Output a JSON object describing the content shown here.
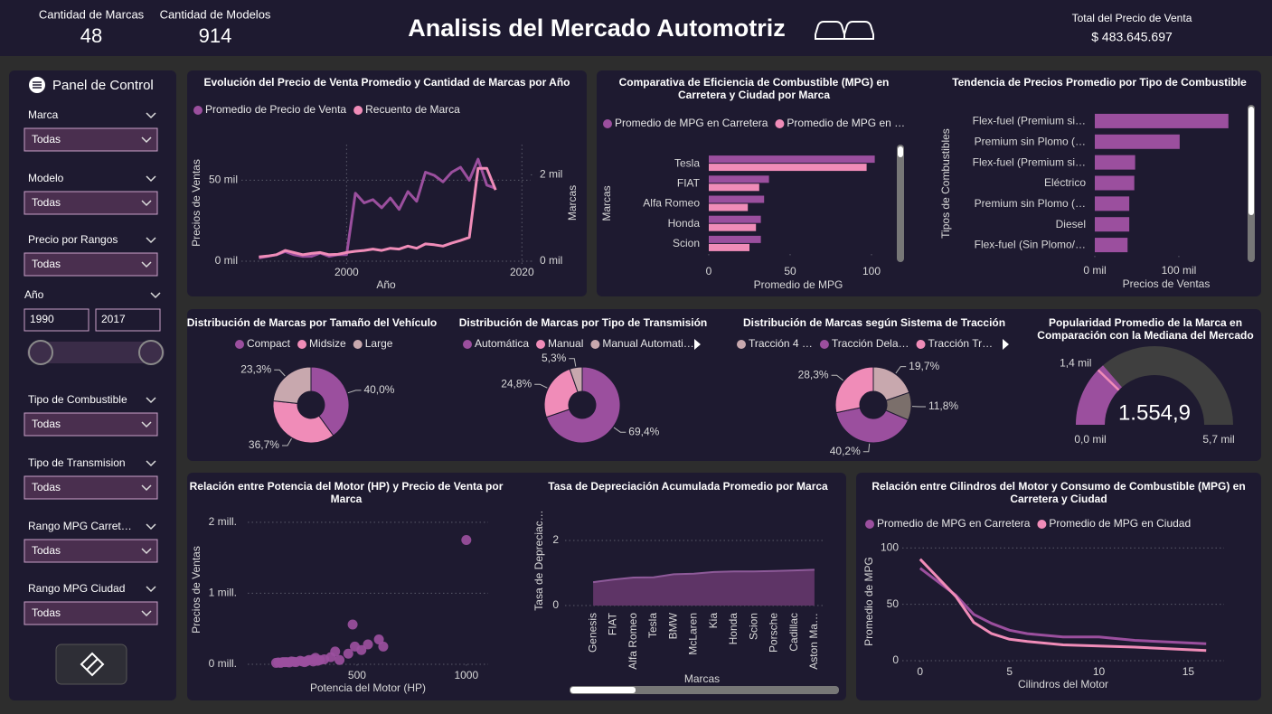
{
  "header": {
    "title": "Analisis del Mercado Automotriz",
    "kpis": [
      {
        "label": "Cantidad de Marcas",
        "value": 48
      },
      {
        "label": "Cantidad de Modelos",
        "value": 914
      },
      {
        "label": "Total del Precio de Venta",
        "value": "$ 483.645.697"
      }
    ]
  },
  "panel": {
    "title": "Panel de Control",
    "filters": [
      {
        "label": "Marca",
        "value": "Todas"
      },
      {
        "label": "Modelo",
        "value": "Todas"
      },
      {
        "label": "Precio por Rangos",
        "value": "Todas"
      },
      {
        "label": "Tipo de Combustible",
        "value": "Todas"
      },
      {
        "label": "Tipo de Transmision",
        "value": "Todas"
      },
      {
        "label": "Rango MPG Carret…",
        "value": "Todas"
      },
      {
        "label": "Rango MPG Ciudad",
        "value": "Todas"
      }
    ],
    "year": {
      "label": "Año",
      "from": 1990,
      "to": 2017
    }
  },
  "chart_data": [
    {
      "type": "line",
      "title": "Evolución del Precio de Venta Promedio y Cantidad de Marcas por Año",
      "x": [
        1990,
        1991,
        1992,
        1993,
        1994,
        1995,
        1996,
        1997,
        1998,
        1999,
        2000,
        2001,
        2002,
        2003,
        2004,
        2005,
        2006,
        2007,
        2008,
        2009,
        2010,
        2011,
        2012,
        2013,
        2014,
        2015,
        2016,
        2017
      ],
      "series": [
        {
          "name": "Promedio de Precio de Venta",
          "color": "#9b4f9e",
          "values": [
            2000,
            3000,
            4000,
            6000,
            4000,
            3000,
            3000,
            5000,
            3000,
            4000,
            4000,
            42000,
            36000,
            38000,
            33000,
            39000,
            32000,
            43000,
            37000,
            55000,
            53000,
            49000,
            55000,
            58000,
            50000,
            63000,
            47000,
            45000
          ]
        },
        {
          "name": "Recuento de Marca",
          "color": "#f08cb8",
          "axis": "y2",
          "values": [
            100,
            120,
            150,
            250,
            200,
            150,
            180,
            200,
            150,
            160,
            200,
            230,
            250,
            280,
            250,
            300,
            280,
            350,
            300,
            400,
            380,
            350,
            420,
            480,
            550,
            2150,
            2150,
            1650
          ]
        }
      ],
      "xlim": [
        1988,
        2021
      ],
      "xticks": [
        2000,
        2020
      ],
      "ylim": [
        0,
        72000
      ],
      "yticks": [
        {
          "value": 0,
          "label": "0 mil"
        },
        {
          "value": 50000,
          "label": "50 mil"
        }
      ],
      "y2lim": [
        0,
        2700
      ],
      "y2ticks": [
        {
          "value": 0,
          "label": "0 mil"
        },
        {
          "value": 2000,
          "label": "2 mil"
        }
      ],
      "xlabel": "Año",
      "ylabel": "Precios de Ventas",
      "y2label": "Marcas",
      "grid": true,
      "xgrid": true
    },
    {
      "type": "hbar",
      "title": "Comparativa de Eficiencia de Combustible (MPG) en Carretera y Ciudad por Marca",
      "categories": [
        "Tesla",
        "FIAT",
        "Alfa Romeo",
        "Honda",
        "Scion"
      ],
      "series": [
        {
          "name": "Promedio de MPG en Carretera",
          "color": "#9b4f9e",
          "values": [
            102,
            37,
            34,
            32,
            32
          ]
        },
        {
          "name": "Promedio de MPG en …",
          "color": "#f08cb8",
          "values": [
            97,
            31,
            24,
            29,
            25
          ]
        }
      ],
      "xlim": [
        0,
        110
      ],
      "xticks": [
        0,
        50,
        100
      ],
      "xlabel": "Promedio de MPG",
      "ylabel": "Marcas"
    },
    {
      "type": "hbar",
      "title": "Tendencia de Precios Promedio por Tipo de Combustible",
      "categories": [
        "Flex-fuel (Premium si…",
        "Premium sin Plomo (…",
        "Flex-fuel (Premium si…",
        "Eléctrico",
        "Premium sin Plomo (…",
        "Diesel",
        "Flex-fuel (Sin Plomo/…"
      ],
      "values": [
        159000,
        101000,
        48000,
        47000,
        41000,
        41000,
        39000
      ],
      "color": "#9b4f9e",
      "xlim": [
        0,
        170000
      ],
      "xticks": [
        {
          "value": 0,
          "label": "0 mil"
        },
        {
          "value": 100000,
          "label": "100 mil"
        }
      ],
      "xlabel": "Precios de Ventas",
      "ylabel": "Tipos de Combustibles"
    },
    {
      "type": "pie",
      "title": "Distribución de Marcas por Tamaño del Vehículo",
      "categories": [
        "Compact",
        "Midsize",
        "Large"
      ],
      "values": [
        40.0,
        36.7,
        23.3
      ],
      "value_labels": [
        "40,0%",
        "36,7%",
        "23,3%"
      ],
      "colors": [
        "#9b4f9e",
        "#f08cb8",
        "#c8a8ae"
      ]
    },
    {
      "type": "pie",
      "title": "Distribución de Marcas por Tipo de Transmisión",
      "categories": [
        "Automática",
        "Manual",
        "Manual Automati…"
      ],
      "values": [
        69.4,
        24.8,
        5.3
      ],
      "value_labels": [
        "69,4%",
        "24,8%",
        "5,3%"
      ],
      "colors": [
        "#9b4f9e",
        "#f08cb8",
        "#c8a8ae"
      ]
    },
    {
      "type": "pie",
      "title": "Distribución de Marcas según Sistema de Tracción",
      "categories": [
        "Tracción 4 …",
        null,
        "Tracción Dela…",
        "Tracción Tr…"
      ],
      "values": [
        19.7,
        11.8,
        40.2,
        28.3
      ],
      "value_labels": [
        "19,7%",
        "11,8%",
        "40,2%",
        "28,3%"
      ],
      "colors": [
        "#c8a8ae",
        "#7b6f6b",
        "#9b4f9e",
        "#f08cb8"
      ]
    },
    {
      "type": "gauge",
      "title": "Popularidad Promedio de la Marca en Comparación con la Mediana del Mercado",
      "value": 1554.9,
      "value_label": "1.554,9",
      "min": 0,
      "min_label": "0,0 mil",
      "max": 5700,
      "max_label": "5,7 mil",
      "target": 1400,
      "target_label": "1,4 mil",
      "color": "#9b4f9e",
      "track_color": "#3f3f3f",
      "target_color": "#f08cb8"
    },
    {
      "type": "scatter",
      "title": "Relación entre Potencia del Motor (HP) y Precio de Venta por Marca",
      "color": "#9b4f9e",
      "x": [
        1000,
        480,
        600,
        620,
        550,
        520,
        490,
        460,
        400,
        380,
        420,
        350,
        300,
        320,
        280,
        250,
        240,
        220,
        200,
        180,
        160,
        150,
        140,
        130,
        300,
        260,
        210,
        190,
        170,
        310,
        330,
        270
      ],
      "values": [
        1750000,
        560000,
        350000,
        250000,
        280000,
        200000,
        250000,
        150000,
        180000,
        100000,
        60000,
        70000,
        70000,
        50000,
        60000,
        40000,
        50000,
        30000,
        40000,
        30000,
        30000,
        20000,
        25000,
        20000,
        40000,
        30000,
        35000,
        25000,
        30000,
        90000,
        60000,
        45000
      ],
      "xlim": [
        0,
        1100
      ],
      "xticks": [
        500,
        1000
      ],
      "ylim": [
        0,
        2100000
      ],
      "yticks": [
        {
          "value": 0,
          "label": "0 mill."
        },
        {
          "value": 1000000,
          "label": "1 mill."
        },
        {
          "value": 2000000,
          "label": "2 mill."
        }
      ],
      "xlabel": "Potencia del Motor (HP)",
      "ylabel": "Precios de Ventas",
      "grid": true
    },
    {
      "type": "area",
      "title": "Tasa de Depreciación Acumulada Promedio por Marca",
      "color": "#5e3466",
      "categories": [
        "Genesis",
        "FIAT",
        "Alfa Romeo",
        "Tesla",
        "BMW",
        "McLaren",
        "Kia",
        "Honda",
        "Scion",
        "Porsche",
        "Cadillac",
        "Aston Ma…"
      ],
      "values": [
        0.72,
        0.8,
        0.86,
        0.87,
        0.96,
        0.98,
        1.03,
        1.05,
        1.05,
        1.06,
        1.08,
        1.1
      ],
      "ylim": [
        0,
        2.5
      ],
      "yticks": [
        0,
        2
      ],
      "xlabel": "Marcas",
      "ylabel": "Tasa de Depreciac…",
      "grid": true
    },
    {
      "type": "line",
      "title": "Relación entre Cilindros del Motor y Consumo de Combustible (MPG) en Carretera y Ciudad",
      "x": [
        0,
        2,
        3,
        4,
        5,
        6,
        8,
        10,
        12,
        16
      ],
      "series": [
        {
          "name": "Promedio de MPG en Carretera",
          "color": "#9b4f9e",
          "values": [
            82,
            58,
            41,
            33,
            27,
            24,
            21,
            21,
            18,
            15
          ]
        },
        {
          "name": "Promedio de MPG en Ciudad",
          "color": "#f08cb8",
          "values": [
            90,
            57,
            34,
            24,
            19,
            17,
            14,
            13,
            12,
            9
          ]
        }
      ],
      "xlim": [
        -1,
        17
      ],
      "xticks": [
        0,
        5,
        10,
        15
      ],
      "ylim": [
        0,
        105
      ],
      "yticks": [
        0,
        50,
        100
      ],
      "xlabel": "Cilindros del Motor",
      "ylabel": "Promedio de MPG",
      "grid": true
    }
  ]
}
